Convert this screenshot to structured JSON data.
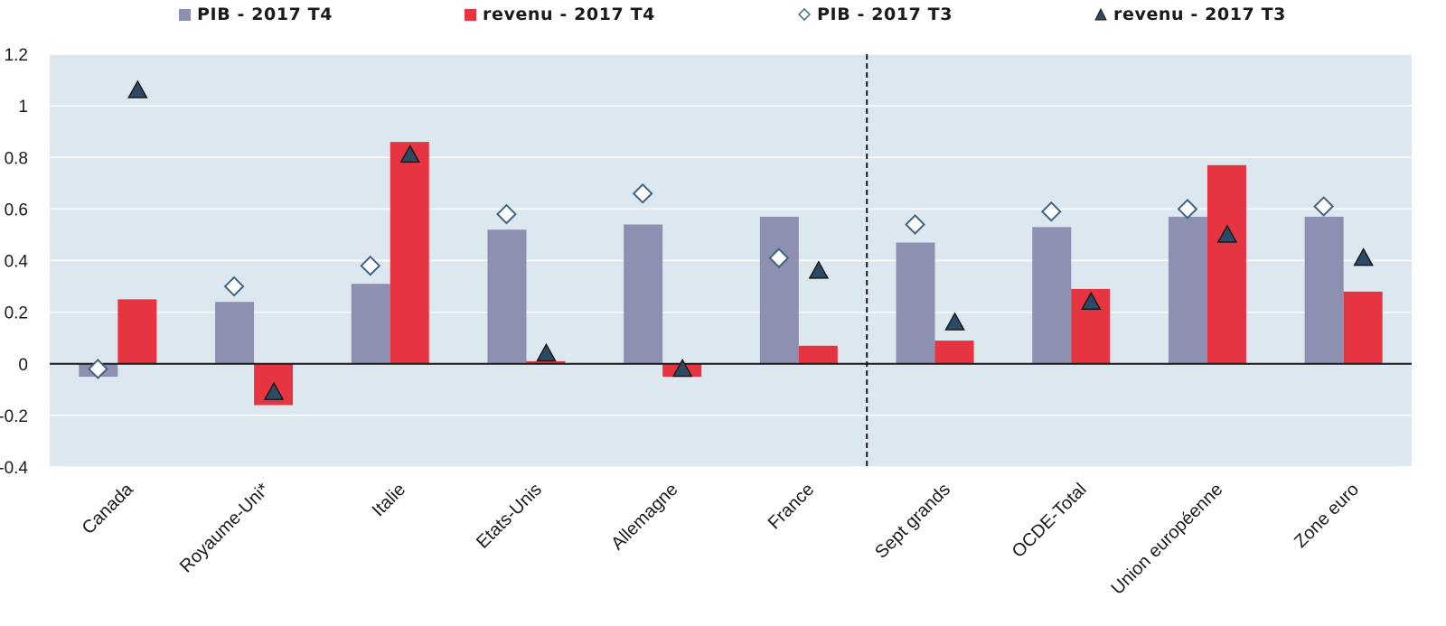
{
  "chart_data": {
    "type": "bar",
    "categories": [
      "Canada",
      "Royaume-Uni*",
      "Italie",
      "Etats-Unis",
      "Allemagne",
      "France",
      "Sept grands",
      "OCDE-Total",
      "Union européenne",
      "Zone euro"
    ],
    "series": [
      {
        "name": "PIB - 2017 T4",
        "mark": "bar",
        "color": "#8e90b1",
        "values": [
          -0.05,
          0.24,
          0.31,
          0.52,
          0.54,
          0.57,
          0.47,
          0.53,
          0.57,
          0.57
        ]
      },
      {
        "name": "revenu - 2017 T4",
        "mark": "bar",
        "color": "#e63541",
        "values": [
          0.25,
          -0.16,
          0.86,
          0.01,
          -0.05,
          0.07,
          0.09,
          0.29,
          0.77,
          0.28
        ]
      },
      {
        "name": "PIB - 2017 T3",
        "mark": "diamond",
        "color": "#ffffff",
        "stroke": "#3f6583",
        "values": [
          -0.02,
          0.3,
          0.38,
          0.58,
          0.66,
          0.41,
          0.54,
          0.59,
          0.6,
          0.61
        ]
      },
      {
        "name": "revenu - 2017 T3",
        "mark": "triangle",
        "color": "#2c4a66",
        "stroke": "#1a1a1a",
        "values": [
          1.06,
          -0.11,
          0.81,
          0.04,
          -0.02,
          0.36,
          0.16,
          0.24,
          0.5,
          0.41
        ]
      }
    ],
    "yticks": [
      "1.2",
      "1",
      "0.8",
      "0.6",
      "0.4",
      "0.2",
      "0",
      "-0.2",
      "-0.4"
    ],
    "ylim": [
      -0.4,
      1.2
    ],
    "grid": true,
    "plot_background": "#dde7ef",
    "separator_after_category": "France",
    "legend_placement": "top"
  }
}
